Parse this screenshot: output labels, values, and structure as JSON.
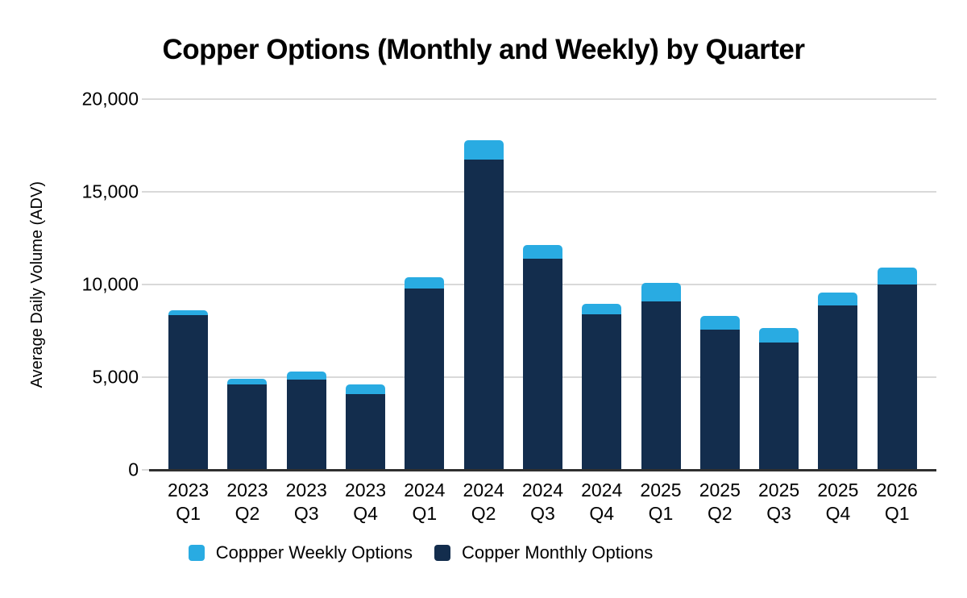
{
  "chart_data": {
    "type": "bar",
    "stacked": true,
    "title": "Copper Options (Monthly and Weekly) by Quarter",
    "xlabel": "",
    "ylabel": "Average Daily Volume (ADV)",
    "ylim": [
      0,
      20000
    ],
    "yticks": [
      0,
      5000,
      10000,
      15000,
      20000
    ],
    "ytick_labels": [
      "0",
      "5,000",
      "10,000",
      "15,000",
      "20,000"
    ],
    "grid": true,
    "legend_position": "bottom",
    "categories": [
      "2023 Q1",
      "2023 Q2",
      "2023 Q3",
      "2023 Q4",
      "2024 Q1",
      "2024 Q2",
      "2024 Q3",
      "2024 Q4",
      "2025 Q1",
      "2025 Q2",
      "2025 Q3",
      "2025 Q4",
      "2026 Q1"
    ],
    "series": [
      {
        "name": "Coppper Weekly Options",
        "color": "#29ABE2",
        "values": [
          250,
          300,
          450,
          500,
          600,
          1050,
          750,
          550,
          1000,
          750,
          800,
          700,
          900
        ]
      },
      {
        "name": "Copper Monthly Options",
        "color": "#132D4D",
        "values": [
          8350,
          4600,
          4850,
          4100,
          9800,
          16750,
          11400,
          8400,
          9100,
          7550,
          6850,
          8850,
          10000
        ]
      }
    ]
  },
  "colors": {
    "gridline": "#D9D9D9",
    "axis_line": "#2F2F2F",
    "text": "#000000",
    "background": "#FFFFFF"
  }
}
